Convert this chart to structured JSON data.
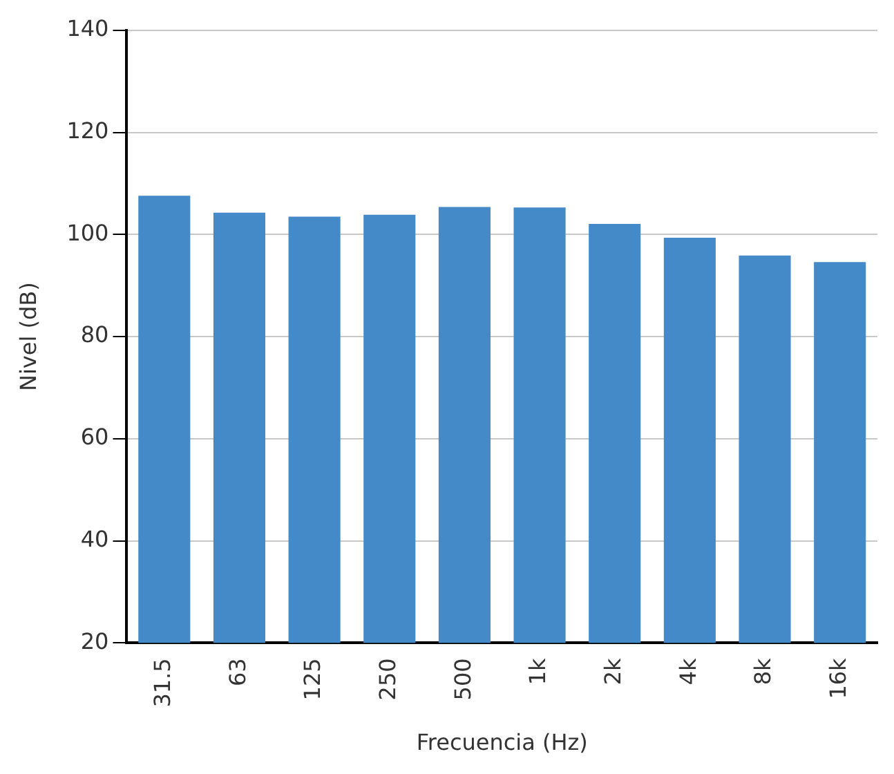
{
  "chart_data": {
    "type": "bar",
    "xlabel": "Frecuencia (Hz)",
    "ylabel": "Nivel (dB)",
    "categories": [
      "31.5",
      "63",
      "125",
      "250",
      "500",
      "1k",
      "2k",
      "4k",
      "8k",
      "16k"
    ],
    "values": [
      107.6,
      104.3,
      103.5,
      103.9,
      105.4,
      105.3,
      102.1,
      99.4,
      95.9,
      94.6
    ],
    "color": "#4489c8",
    "ylim": [
      20,
      140
    ],
    "yticks": [
      20,
      40,
      60,
      80,
      100,
      120,
      140
    ],
    "grid": "y",
    "legend": false
  }
}
